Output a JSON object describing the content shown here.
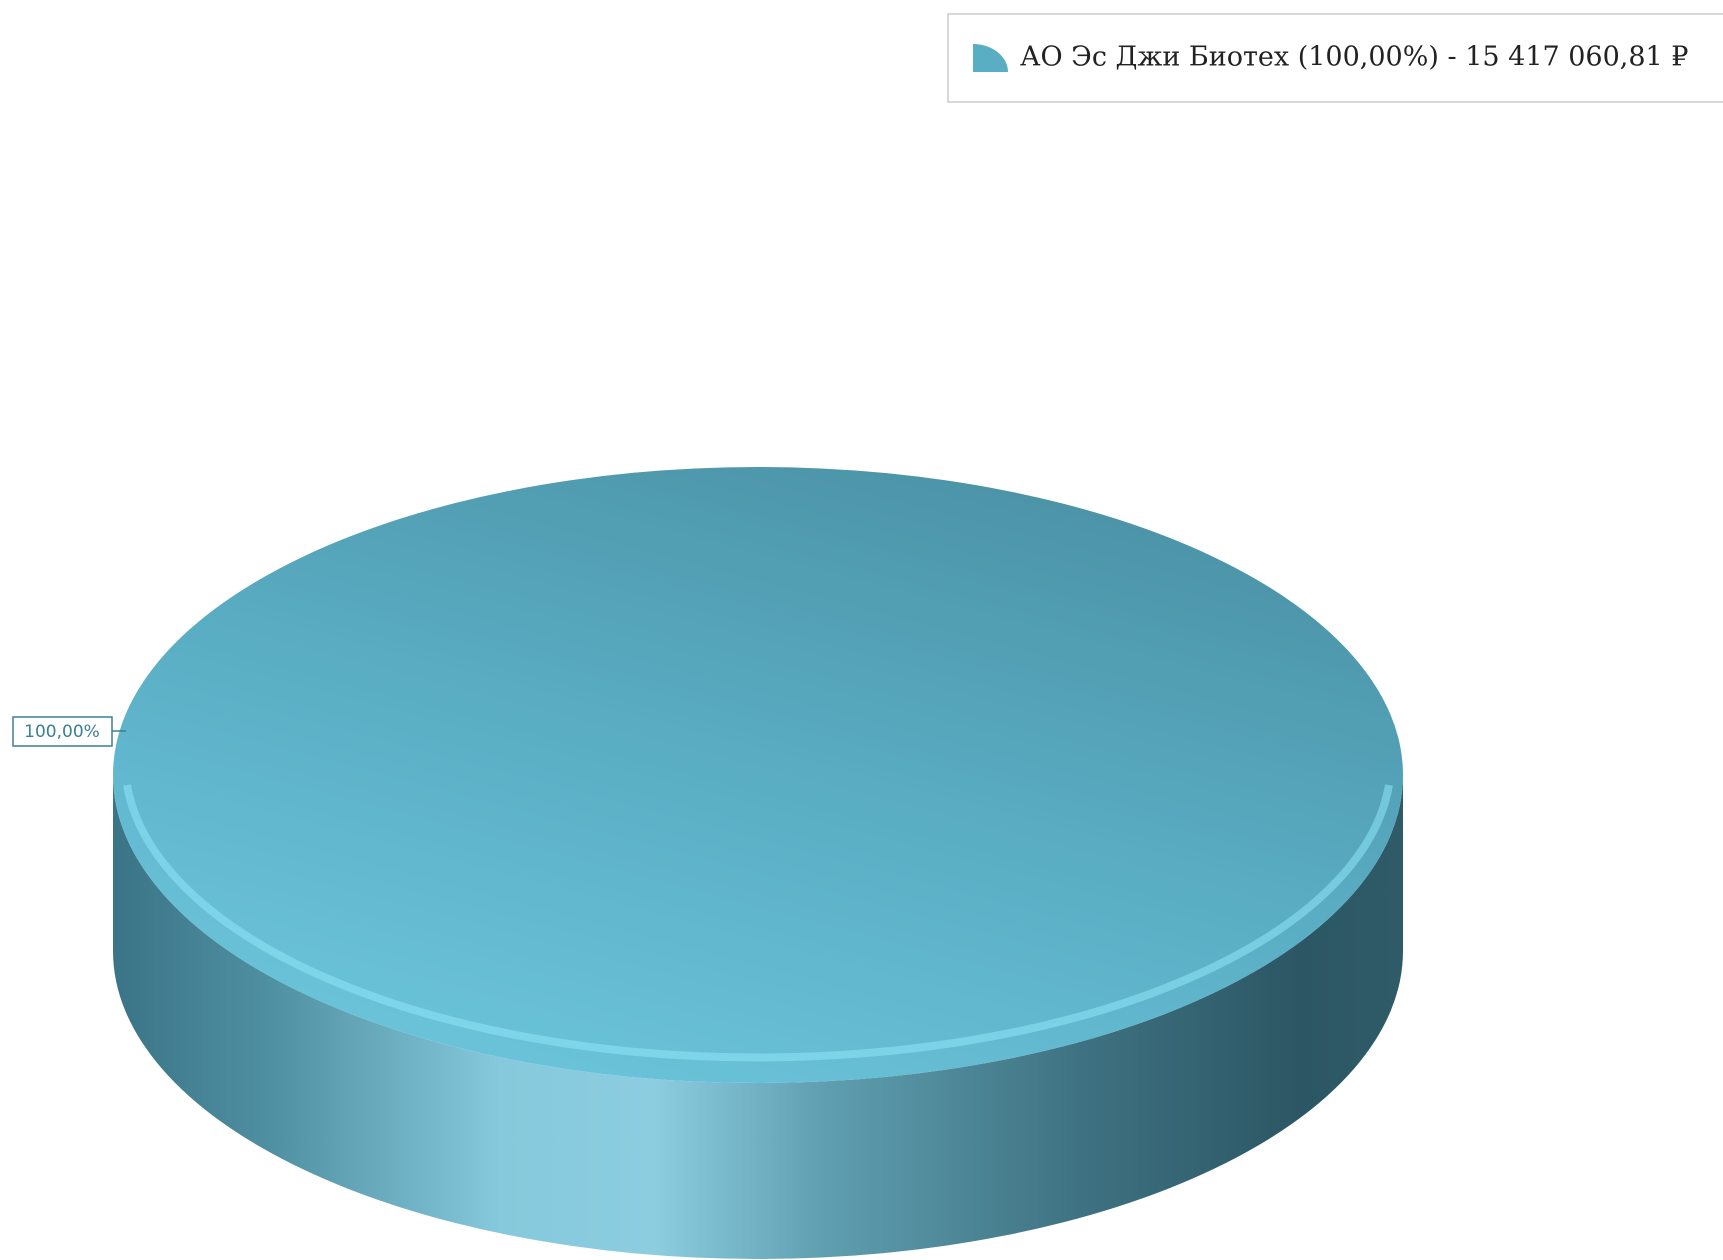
{
  "chart_data": {
    "type": "pie",
    "categories": [
      "АО Эс Джи Биотех (100,00%) - 15 417 060,81 ₽"
    ],
    "values": [
      100
    ],
    "value_labels": [
      "100,00%"
    ],
    "colors": [
      "#5aaec4"
    ],
    "legend": "top-right",
    "three_d": true
  }
}
